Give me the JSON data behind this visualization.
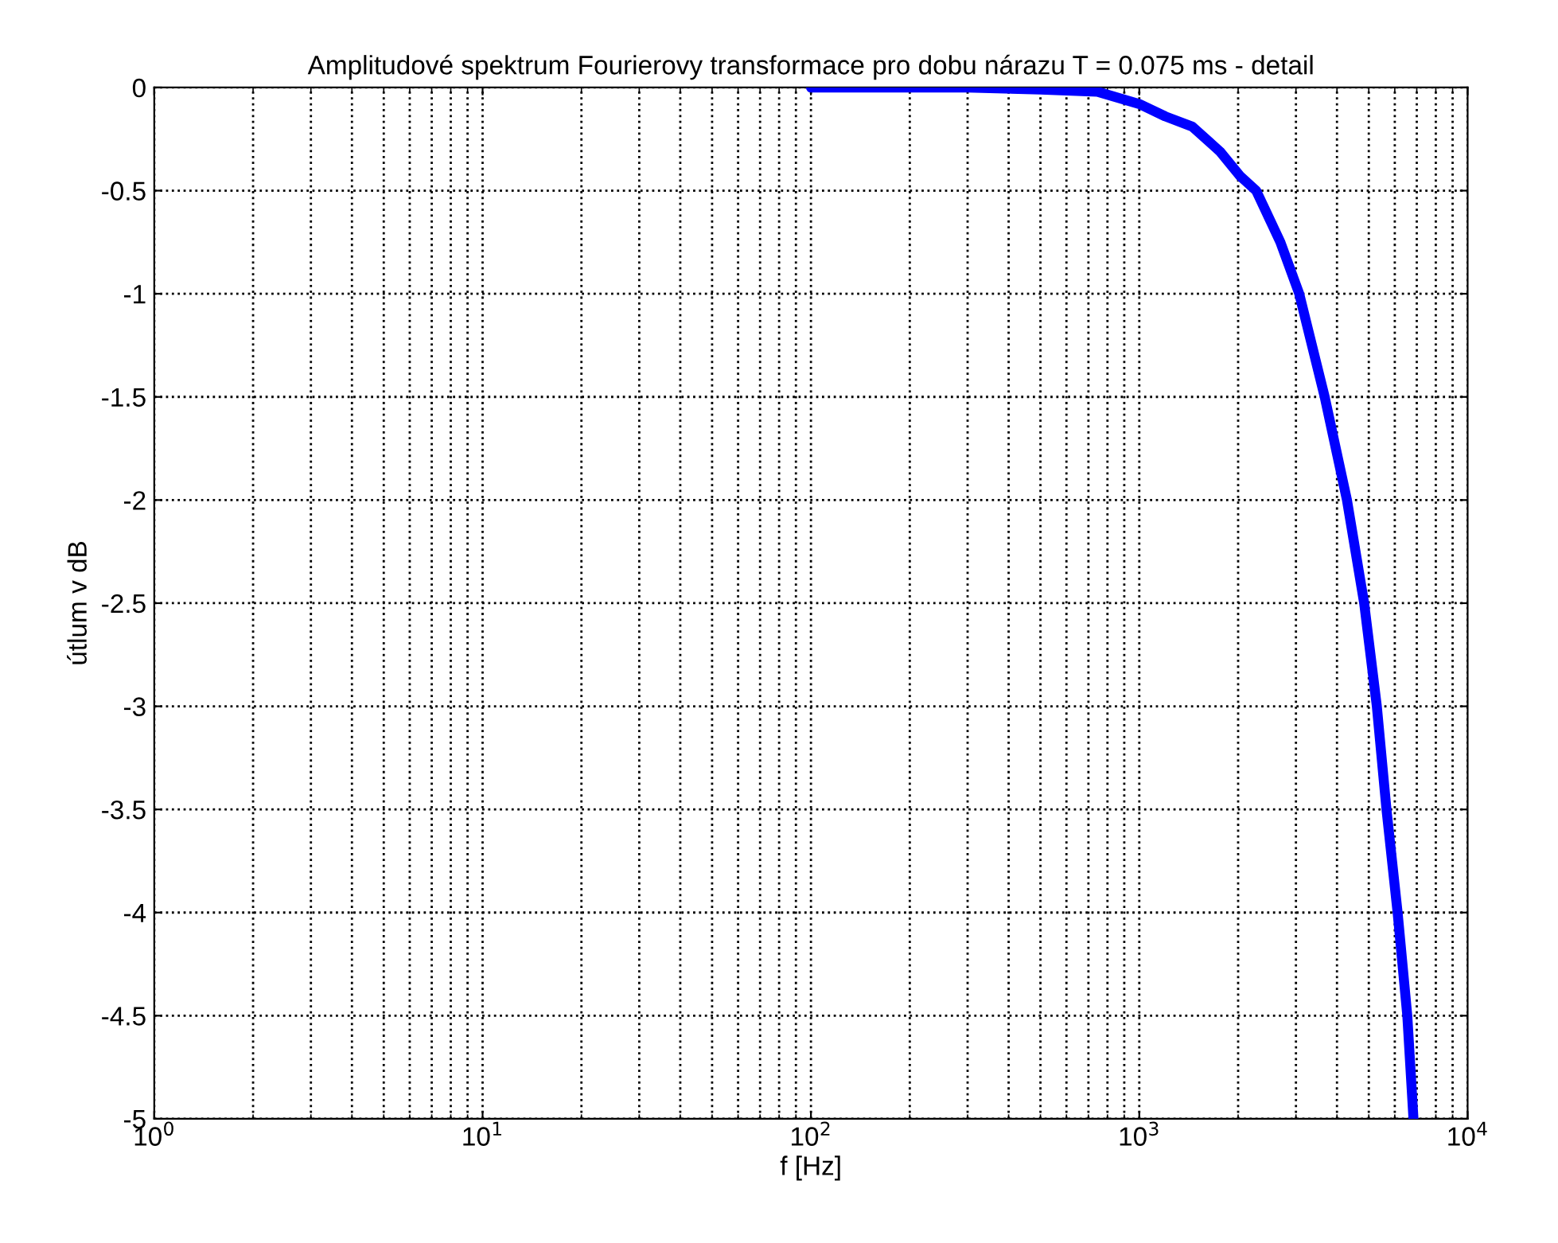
{
  "chart_data": {
    "type": "line",
    "title": "Amplitudové spektrum Fourierovy transformace pro dobu nárazu T = 0.075 ms - detail",
    "xlabel": "f [Hz]",
    "ylabel": "útlum v dB",
    "log": "x",
    "grid": true,
    "marker": "none",
    "line_style": "solid",
    "xlim": [
      1,
      10000
    ],
    "xticks": [
      {
        "value": 1,
        "label": "10$^{0}$"
      },
      {
        "value": 10,
        "label": "10$^{1}$"
      },
      {
        "value": 100,
        "label": "10$^{2}$"
      },
      {
        "value": 1000,
        "label": "10$^{3}$"
      },
      {
        "value": 10000,
        "label": "10$^{4}$"
      }
    ],
    "ylim": [
      -5,
      0
    ],
    "yticks": [
      -5,
      -4.5,
      -4,
      -3.5,
      -3,
      -2.5,
      -2,
      -1.5,
      -1,
      -0.5,
      0
    ],
    "series": [
      {
        "color": "#0000ff",
        "x": [
          100,
          200,
          300,
          500,
          745,
          1000,
          1200,
          1450,
          1760,
          2030,
          2270,
          2690,
          3070,
          3670,
          4290,
          4840,
          5290,
          5660,
          6120,
          6550,
          6840
        ],
        "values": [
          0,
          0,
          0,
          -0.01,
          -0.02,
          -0.08,
          -0.14,
          -0.19,
          -0.31,
          -0.43,
          -0.5,
          -0.75,
          -1.0,
          -1.5,
          -2.0,
          -2.5,
          -3.0,
          -3.5,
          -4.0,
          -4.5,
          -5.0
        ]
      }
    ]
  }
}
